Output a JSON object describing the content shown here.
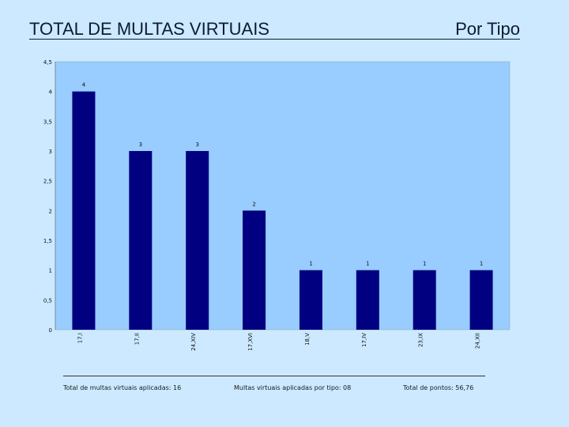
{
  "header": {
    "title": "TOTAL DE MULTAS VIRTUAIS",
    "subtitle": "Por Tipo"
  },
  "chart_data": {
    "type": "bar",
    "categories": [
      "17,I",
      "17,II",
      "24,XIV",
      "17,XVI",
      "18,V",
      "17,IV",
      "23,IX",
      "24,XII"
    ],
    "values": [
      4,
      3,
      3,
      2,
      1,
      1,
      1,
      1
    ],
    "data_labels": [
      "4",
      "3",
      "3",
      "2",
      "1",
      "1",
      "1",
      "1"
    ],
    "yticks": [
      "0",
      "0,5",
      "1",
      "1,5",
      "2",
      "2,5",
      "3",
      "3,5",
      "4",
      "4,5"
    ],
    "ylim": [
      0,
      4.5
    ],
    "title": "",
    "xlabel": "",
    "ylabel": "",
    "grid": false,
    "colors": {
      "bar": "#000080",
      "plot_bg": "#99ccff"
    }
  },
  "footer": {
    "total_multas": "Total de multas virtuais aplicadas: 16",
    "multas_por_tipo": "Multas virtuais aplicadas por tipo: 08",
    "total_pontos": "Total de pontos: 56,76"
  }
}
